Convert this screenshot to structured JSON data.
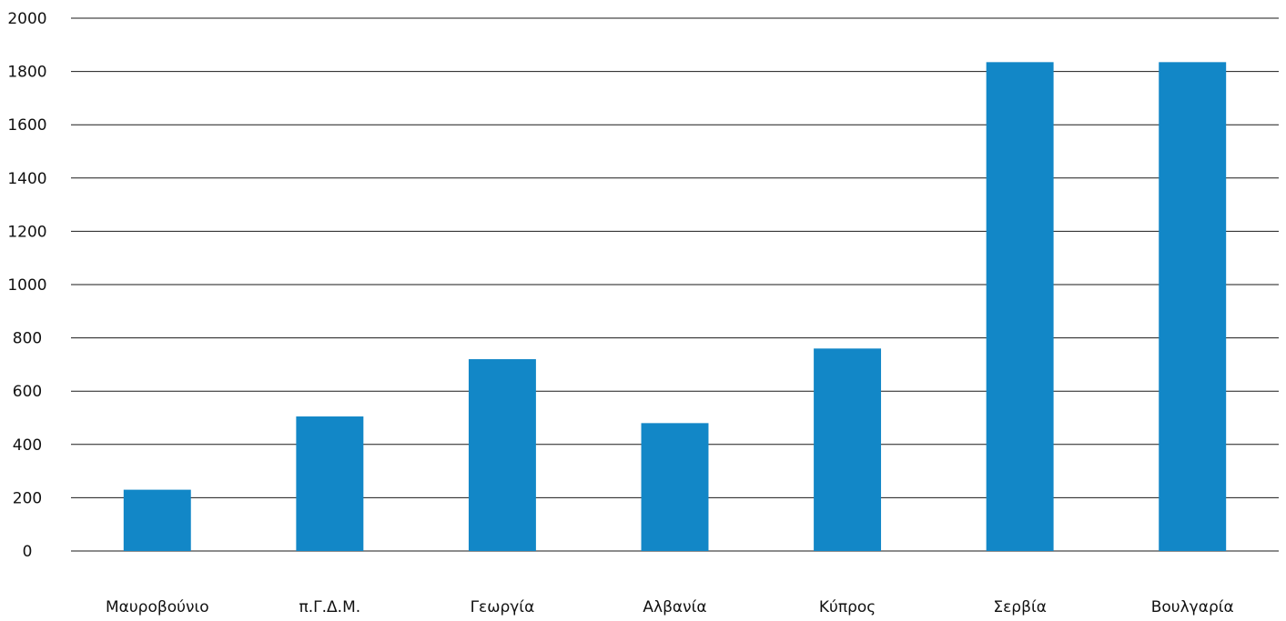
{
  "chart_data": {
    "type": "bar",
    "title": "",
    "xlabel": "",
    "ylabel": "",
    "categories": [
      "Μαυροβούνιο",
      "π.Γ.Δ.Μ.",
      "Γεωργία",
      "Αλβανία",
      "Κύπρος",
      "Σερβία",
      "Βουλγαρία"
    ],
    "values": [
      230,
      505,
      720,
      480,
      760,
      1835,
      1835
    ],
    "ylim": [
      0,
      2000
    ],
    "yticks": [
      "0",
      "200",
      "400",
      "600",
      "800",
      "1000",
      "1200",
      "1400",
      "1600",
      "1800",
      "2000"
    ],
    "grid": true,
    "legend": "none",
    "bar_color": "#1287c7",
    "grid_color": "#1a1a1a"
  }
}
